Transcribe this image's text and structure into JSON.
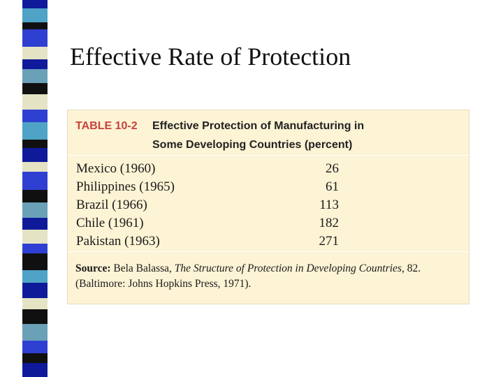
{
  "slide": {
    "title": "Effective Rate of Protection"
  },
  "table": {
    "number": "TABLE 10-2",
    "caption_line1": "Effective Protection of Manufacturing in",
    "caption_line2": "Some Developing Countries (percent)",
    "rows": [
      {
        "country": "Mexico (1960)",
        "value": "26"
      },
      {
        "country": "Philippines (1965)",
        "value": "61"
      },
      {
        "country": "Brazil (1966)",
        "value": "113"
      },
      {
        "country": "Chile (1961)",
        "value": "182"
      },
      {
        "country": "Pakistan (1963)",
        "value": "271"
      }
    ],
    "source": {
      "label": "Source:",
      "author": "Bela Balassa,",
      "book_title": "The Structure of Protection in Developing Countries",
      "rest": ", 82. (Baltimore: Johns Hopkins Press, 1971)."
    }
  },
  "colors": {
    "table_background": "#fdf3d5",
    "table_number": "#c8423b",
    "strip": [
      "#0f1a9a",
      "#4ea3c6",
      "#2f3fd2",
      "#e4e4c4",
      "#101010",
      "#6aa0b8"
    ]
  }
}
